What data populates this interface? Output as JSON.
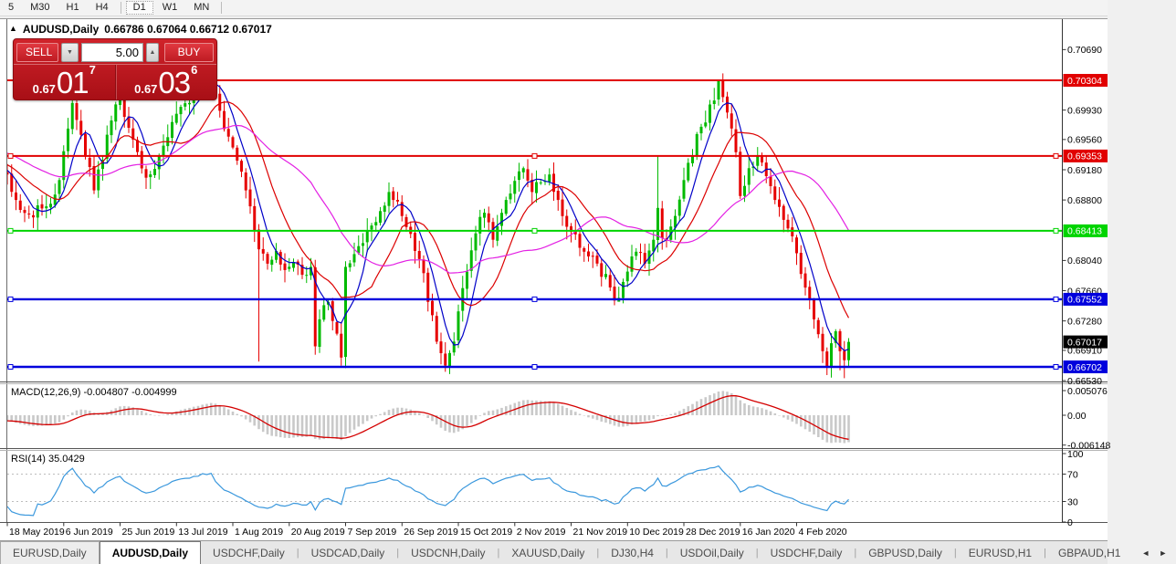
{
  "toolbar": {
    "items": [
      "5",
      "M30",
      "H1",
      "H4",
      "D1",
      "W1",
      "MN"
    ],
    "active": "D1",
    "separators_after": [
      "H4",
      "MN"
    ]
  },
  "chart_window": {
    "collapse_icon": "▲",
    "title_symbol": "AUDUSD,Daily",
    "title_values": "0.66786 0.67064 0.66712 0.67017"
  },
  "trade_panel": {
    "sell_label": "SELL",
    "buy_label": "BUY",
    "volume": "5.00",
    "down_arrow": "▼",
    "up_arrow": "▲",
    "sell_price": {
      "prefix": "0.67",
      "big": "01",
      "sup": "7"
    },
    "buy_price": {
      "prefix": "0.67",
      "big": "03",
      "sup": "6"
    }
  },
  "indicators": {
    "macd_label": "MACD(12,26,9) -0.004807 -0.004999",
    "rsi_label": "RSI(14) 35.0429"
  },
  "chart_data": {
    "type": "candlestick",
    "symbol": "AUDUSD",
    "timeframe": "Daily",
    "bars": 195,
    "current_bar": {
      "open": 0.66786,
      "high": 0.67064,
      "low": 0.66712,
      "close": 0.67017
    },
    "close_path_anchors": [
      [
        0,
        0.6912
      ],
      [
        2,
        0.688
      ],
      [
        5,
        0.6862
      ],
      [
        9,
        0.6872
      ],
      [
        12,
        0.6905
      ],
      [
        15,
        0.7002
      ],
      [
        17,
        0.6962
      ],
      [
        20,
        0.6892
      ],
      [
        23,
        0.6962
      ],
      [
        26,
        0.701
      ],
      [
        29,
        0.6956
      ],
      [
        32,
        0.6908
      ],
      [
        35,
        0.6936
      ],
      [
        38,
        0.6978
      ],
      [
        42,
        0.7002
      ],
      [
        45,
        0.7036
      ],
      [
        47,
        0.7042
      ],
      [
        49,
        0.6992
      ],
      [
        52,
        0.6946
      ],
      [
        55,
        0.6892
      ],
      [
        57,
        0.6842
      ],
      [
        58,
        0.6818
      ],
      [
        60,
        0.68
      ],
      [
        62,
        0.6816
      ],
      [
        64,
        0.6792
      ],
      [
        66,
        0.6802
      ],
      [
        68,
        0.6786
      ],
      [
        70,
        0.6796
      ],
      [
        71,
        0.6696
      ],
      [
        72,
        0.673
      ],
      [
        74,
        0.6752
      ],
      [
        76,
        0.6712
      ],
      [
        77,
        0.6682
      ],
      [
        78,
        0.6796
      ],
      [
        80,
        0.6812
      ],
      [
        83,
        0.6842
      ],
      [
        86,
        0.6866
      ],
      [
        88,
        0.689
      ],
      [
        90,
        0.6878
      ],
      [
        92,
        0.6846
      ],
      [
        94,
        0.6816
      ],
      [
        96,
        0.6788
      ],
      [
        97,
        0.6752
      ],
      [
        99,
        0.6702
      ],
      [
        101,
        0.6672
      ],
      [
        103,
        0.6702
      ],
      [
        104,
        0.674
      ],
      [
        106,
        0.679
      ],
      [
        108,
        0.6838
      ],
      [
        110,
        0.6864
      ],
      [
        112,
        0.683
      ],
      [
        115,
        0.688
      ],
      [
        117,
        0.6904
      ],
      [
        119,
        0.692
      ],
      [
        121,
        0.689
      ],
      [
        123,
        0.6902
      ],
      [
        125,
        0.6912
      ],
      [
        127,
        0.688
      ],
      [
        130,
        0.684
      ],
      [
        133,
        0.6815
      ],
      [
        136,
        0.68
      ],
      [
        139,
        0.677
      ],
      [
        141,
        0.6757
      ],
      [
        143,
        0.679
      ],
      [
        145,
        0.6815
      ],
      [
        147,
        0.68
      ],
      [
        149,
        0.683
      ],
      [
        150,
        0.687
      ],
      [
        151,
        0.6832
      ],
      [
        152,
        0.683
      ],
      [
        154,
        0.686
      ],
      [
        156,
        0.6905
      ],
      [
        158,
        0.6935
      ],
      [
        160,
        0.6972
      ],
      [
        162,
        0.7
      ],
      [
        164,
        0.703
      ],
      [
        166,
        0.699
      ],
      [
        168,
        0.694
      ],
      [
        169,
        0.6885
      ],
      [
        171,
        0.692
      ],
      [
        173,
        0.6935
      ],
      [
        175,
        0.691
      ],
      [
        177,
        0.688
      ],
      [
        179,
        0.6855
      ],
      [
        182,
        0.6813
      ],
      [
        184,
        0.677
      ],
      [
        186,
        0.673
      ],
      [
        188,
        0.669
      ],
      [
        189,
        0.667
      ],
      [
        190,
        0.67
      ],
      [
        191,
        0.6715
      ],
      [
        192,
        0.669
      ],
      [
        193,
        0.66786
      ],
      [
        194,
        0.67017
      ]
    ],
    "low_overrides": {
      "58": 0.6677,
      "101": 0.6664,
      "141": 0.6753,
      "192": 0.6666,
      "193": 0.6656
    },
    "high_overrides": {
      "26": 0.7028,
      "47": 0.7048,
      "119": 0.6922,
      "150": 0.6936,
      "164": 0.70315
    },
    "up_color": "#00ba00",
    "down_color": "#e60000",
    "levels": [
      {
        "price": 0.70304,
        "badge": "0.70304",
        "color": "#e10000",
        "selected": false
      },
      {
        "price": 0.69353,
        "badge": "0.69353",
        "color": "#e10000",
        "selected": true
      },
      {
        "price": 0.68413,
        "badge": "0.68413",
        "color": "#00d400",
        "selected": true
      },
      {
        "price": 0.67552,
        "badge": "0.67552",
        "color": "#0000dd",
        "selected": true
      },
      {
        "price": 0.66702,
        "badge": "0.66702",
        "color": "#0000dd",
        "selected": true
      }
    ],
    "current_price_badge": {
      "price": 0.67017,
      "label": "0.67017",
      "bg": "#000000"
    },
    "price_ticks": [
      "0.70690",
      "0.69930",
      "0.69560",
      "0.69180",
      "0.68800",
      "0.68040",
      "0.67660",
      "0.67280",
      "0.66910",
      "0.66530"
    ],
    "date_labels": [
      "18 May 2019",
      "6 Jun 2019",
      "25 Jun 2019",
      "13 Jul 2019",
      "1 Aug 2019",
      "20 Aug 2019",
      "7 Sep 2019",
      "26 Sep 2019",
      "15 Oct 2019",
      "2 Nov 2019",
      "21 Nov 2019",
      "10 Dec 2019",
      "28 Dec 2019",
      "16 Jan 2020",
      "4 Feb 2020"
    ],
    "label_every_bars": 13,
    "moving_averages": [
      {
        "period": 6,
        "color": "#0000c8"
      },
      {
        "period": 14,
        "color": "#dc0000"
      },
      {
        "period": 32,
        "color": "#e320e3"
      }
    ],
    "macd": {
      "fast": 12,
      "slow": 26,
      "signal": 9,
      "axis_ticks": [
        "0.005076",
        "0.00",
        "-0.006148"
      ],
      "hist_color": "#c9c9c9",
      "signal_color": "#d40000"
    },
    "rsi": {
      "period": 14,
      "axis_ticks": [
        "100",
        "70",
        "30",
        "0"
      ],
      "levels": [
        70,
        30
      ],
      "color": "#3b98dd",
      "level_color": "#bcbcbc"
    }
  },
  "tabs": {
    "items": [
      "EURUSD,Daily",
      "AUDUSD,Daily",
      "USDCHF,Daily",
      "USDCAD,Daily",
      "USDCNH,Daily",
      "XAUUSD,Daily",
      "DJ30,H4",
      "USDOil,Daily",
      "USDCHF,Daily",
      "GBPUSD,Daily",
      "EURUSD,H1",
      "GBPAUD,H1"
    ],
    "active_index": 1,
    "boxed_index": 0,
    "scroll_left": "◄",
    "scroll_right": "►"
  }
}
